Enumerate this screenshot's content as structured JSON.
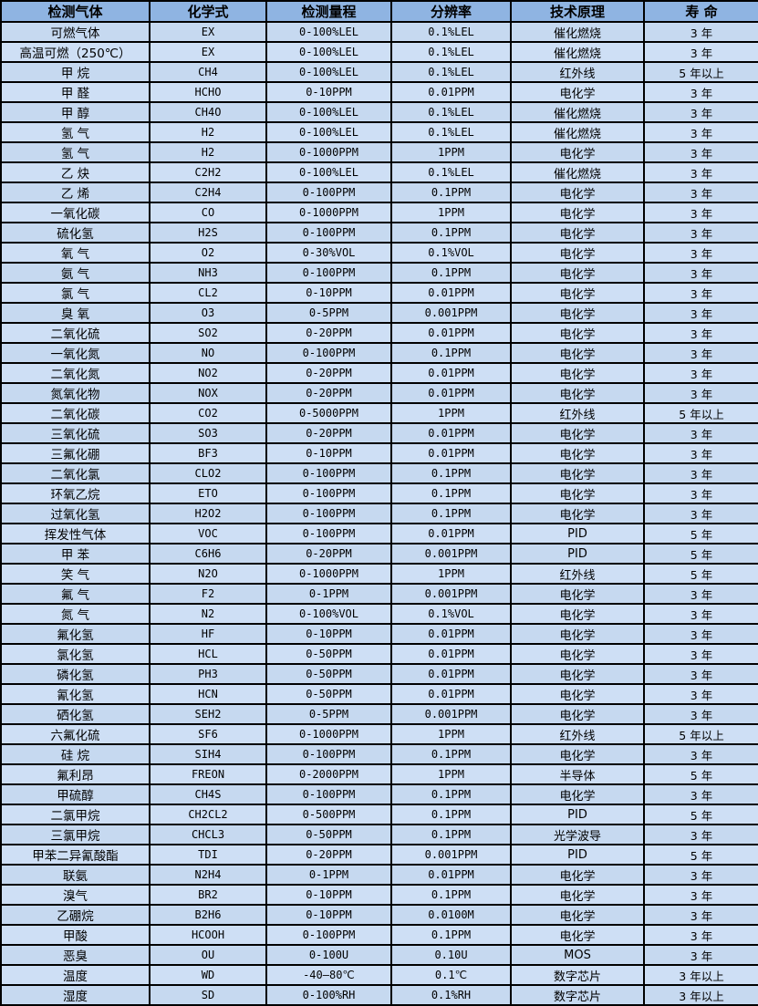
{
  "colors": {
    "header_bg": "#8FB4E2",
    "row_odd": "#C6D9F0",
    "row_even": "#CEDFF5",
    "grid": "#000000",
    "text": "#000000"
  },
  "table": {
    "columns": [
      {
        "key": "gas",
        "label": "检测气体"
      },
      {
        "key": "formula",
        "label": "化学式"
      },
      {
        "key": "range",
        "label": "检测量程"
      },
      {
        "key": "resolution",
        "label": "分辨率"
      },
      {
        "key": "principle",
        "label": "技术原理"
      },
      {
        "key": "life",
        "label": "寿 命"
      }
    ],
    "rows": [
      {
        "gas": "可燃气体",
        "formula": "EX",
        "range": "0-100%LEL",
        "resolution": "0.1%LEL",
        "principle": "催化燃烧",
        "life": "3 年"
      },
      {
        "gas": "高温可燃（250℃）",
        "formula": "EX",
        "range": "0-100%LEL",
        "resolution": "0.1%LEL",
        "principle": "催化燃烧",
        "life": "3 年"
      },
      {
        "gas": "甲 烷",
        "formula": "CH4",
        "range": "0-100%LEL",
        "resolution": "0.1%LEL",
        "principle": "红外线",
        "life": "5 年以上"
      },
      {
        "gas": "甲 醛",
        "formula": "HCHO",
        "range": "0-10PPM",
        "resolution": "0.01PPM",
        "principle": "电化学",
        "life": "3 年"
      },
      {
        "gas": "甲 醇",
        "formula": "CH4O",
        "range": "0-100%LEL",
        "resolution": "0.1%LEL",
        "principle": "催化燃烧",
        "life": "3 年"
      },
      {
        "gas": "氢 气",
        "formula": "H2",
        "range": "0-100%LEL",
        "resolution": "0.1%LEL",
        "principle": "催化燃烧",
        "life": "3 年"
      },
      {
        "gas": "氢 气",
        "formula": "H2",
        "range": "0-1000PPM",
        "resolution": "1PPM",
        "principle": "电化学",
        "life": "3 年"
      },
      {
        "gas": "乙 炔",
        "formula": "C2H2",
        "range": "0-100%LEL",
        "resolution": "0.1%LEL",
        "principle": "催化燃烧",
        "life": "3 年"
      },
      {
        "gas": "乙 烯",
        "formula": "C2H4",
        "range": "0-100PPM",
        "resolution": "0.1PPM",
        "principle": "电化学",
        "life": "3 年"
      },
      {
        "gas": "一氧化碳",
        "formula": "CO",
        "range": "0-1000PPM",
        "resolution": "1PPM",
        "principle": "电化学",
        "life": "3 年"
      },
      {
        "gas": "硫化氢",
        "formula": "H2S",
        "range": "0-100PPM",
        "resolution": "0.1PPM",
        "principle": "电化学",
        "life": "3 年"
      },
      {
        "gas": "氧 气",
        "formula": "O2",
        "range": "0-30%VOL",
        "resolution": "0.1%VOL",
        "principle": "电化学",
        "life": "3 年"
      },
      {
        "gas": "氨 气",
        "formula": "NH3",
        "range": "0-100PPM",
        "resolution": "0.1PPM",
        "principle": "电化学",
        "life": "3 年"
      },
      {
        "gas": "氯 气",
        "formula": "CL2",
        "range": "0-10PPM",
        "resolution": "0.01PPM",
        "principle": "电化学",
        "life": "3 年"
      },
      {
        "gas": "臭 氧",
        "formula": "O3",
        "range": "0-5PPM",
        "resolution": "0.001PPM",
        "principle": "电化学",
        "life": "3 年"
      },
      {
        "gas": "二氧化硫",
        "formula": "SO2",
        "range": "0-20PPM",
        "resolution": "0.01PPM",
        "principle": "电化学",
        "life": "3 年"
      },
      {
        "gas": "一氧化氮",
        "formula": "NO",
        "range": "0-100PPM",
        "resolution": "0.1PPM",
        "principle": "电化学",
        "life": "3 年"
      },
      {
        "gas": "二氧化氮",
        "formula": "NO2",
        "range": "0-20PPM",
        "resolution": "0.01PPM",
        "principle": "电化学",
        "life": "3 年"
      },
      {
        "gas": "氮氧化物",
        "formula": "NOX",
        "range": "0-20PPM",
        "resolution": "0.01PPM",
        "principle": "电化学",
        "life": "3 年"
      },
      {
        "gas": "二氧化碳",
        "formula": "CO2",
        "range": "0-5000PPM",
        "resolution": "1PPM",
        "principle": "红外线",
        "life": "5 年以上"
      },
      {
        "gas": "三氧化硫",
        "formula": "SO3",
        "range": "0-20PPM",
        "resolution": "0.01PPM",
        "principle": "电化学",
        "life": "3 年"
      },
      {
        "gas": "三氟化硼",
        "formula": "BF3",
        "range": "0-10PPM",
        "resolution": "0.01PPM",
        "principle": "电化学",
        "life": "3 年"
      },
      {
        "gas": "二氧化氯",
        "formula": "CLO2",
        "range": "0-100PPM",
        "resolution": "0.1PPM",
        "principle": "电化学",
        "life": "3 年"
      },
      {
        "gas": "环氧乙烷",
        "formula": "ETO",
        "range": "0-100PPM",
        "resolution": "0.1PPM",
        "principle": "电化学",
        "life": "3 年"
      },
      {
        "gas": "过氧化氢",
        "formula": "H2O2",
        "range": "0-100PPM",
        "resolution": "0.1PPM",
        "principle": "电化学",
        "life": "3 年"
      },
      {
        "gas": "挥发性气体",
        "formula": "VOC",
        "range": "0-100PPM",
        "resolution": "0.01PPM",
        "principle": "PID",
        "life": "5 年"
      },
      {
        "gas": "甲 苯",
        "formula": "C6H6",
        "range": "0-20PPM",
        "resolution": "0.001PPM",
        "principle": "PID",
        "life": "5 年"
      },
      {
        "gas": "笑 气",
        "formula": "N2O",
        "range": "0-1000PPM",
        "resolution": "1PPM",
        "principle": "红外线",
        "life": "5 年"
      },
      {
        "gas": "氟 气",
        "formula": "F2",
        "range": "0-1PPM",
        "resolution": "0.001PPM",
        "principle": "电化学",
        "life": "3 年"
      },
      {
        "gas": "氮 气",
        "formula": "N2",
        "range": "0-100%VOL",
        "resolution": "0.1%VOL",
        "principle": "电化学",
        "life": "3 年"
      },
      {
        "gas": "氟化氢",
        "formula": "HF",
        "range": "0-10PPM",
        "resolution": "0.01PPM",
        "principle": "电化学",
        "life": "3 年"
      },
      {
        "gas": "氯化氢",
        "formula": "HCL",
        "range": "0-50PPM",
        "resolution": "0.01PPM",
        "principle": "电化学",
        "life": "3 年"
      },
      {
        "gas": "磷化氢",
        "formula": "PH3",
        "range": "0-50PPM",
        "resolution": "0.01PPM",
        "principle": "电化学",
        "life": "3 年"
      },
      {
        "gas": "氰化氢",
        "formula": "HCN",
        "range": "0-50PPM",
        "resolution": "0.01PPM",
        "principle": "电化学",
        "life": "3 年"
      },
      {
        "gas": "硒化氢",
        "formula": "SEH2",
        "range": "0-5PPM",
        "resolution": "0.001PPM",
        "principle": "电化学",
        "life": "3 年"
      },
      {
        "gas": "六氟化硫",
        "formula": "SF6",
        "range": "0-1000PPM",
        "resolution": "1PPM",
        "principle": "红外线",
        "life": "5 年以上"
      },
      {
        "gas": "硅 烷",
        "formula": "SIH4",
        "range": "0-100PPM",
        "resolution": "0.1PPM",
        "principle": "电化学",
        "life": "3 年"
      },
      {
        "gas": "氟利昂",
        "formula": "FREON",
        "range": "0-2000PPM",
        "resolution": "1PPM",
        "principle": "半导体",
        "life": "5 年"
      },
      {
        "gas": "甲硫醇",
        "formula": "CH4S",
        "range": "0-100PPM",
        "resolution": "0.1PPM",
        "principle": "电化学",
        "life": "3 年"
      },
      {
        "gas": "二氯甲烷",
        "formula": "CH2CL2",
        "range": "0-500PPM",
        "resolution": "0.1PPM",
        "principle": "PID",
        "life": "5 年"
      },
      {
        "gas": "三氯甲烷",
        "formula": "CHCL3",
        "range": "0-50PPM",
        "resolution": "0.1PPM",
        "principle": "光学波导",
        "life": "3 年"
      },
      {
        "gas": "甲苯二异氰酸酯",
        "formula": "TDI",
        "range": "0-20PPM",
        "resolution": "0.001PPM",
        "principle": "PID",
        "life": "5 年"
      },
      {
        "gas": "联氨",
        "formula": "N2H4",
        "range": "0-1PPM",
        "resolution": "0.01PPM",
        "principle": "电化学",
        "life": "3 年"
      },
      {
        "gas": "溴气",
        "formula": "BR2",
        "range": "0-10PPM",
        "resolution": "0.1PPM",
        "principle": "电化学",
        "life": "3 年"
      },
      {
        "gas": "乙硼烷",
        "formula": "B2H6",
        "range": "0-10PPM",
        "resolution": "0.0100M",
        "principle": "电化学",
        "life": "3 年"
      },
      {
        "gas": "甲酸",
        "formula": "HCOOH",
        "range": "0-100PPM",
        "resolution": "0.1PPM",
        "principle": "电化学",
        "life": "3 年"
      },
      {
        "gas": "恶臭",
        "formula": "OU",
        "range": "0-100U",
        "resolution": "0.10U",
        "principle": "MOS",
        "life": "3 年"
      },
      {
        "gas": "温度",
        "formula": "WD",
        "range": "-40—80℃",
        "resolution": "0.1℃",
        "principle": "数字芯片",
        "life": "3 年以上"
      },
      {
        "gas": "湿度",
        "formula": "SD",
        "range": "0-100%RH",
        "resolution": "0.1%RH",
        "principle": "数字芯片",
        "life": "3 年以上"
      }
    ]
  }
}
